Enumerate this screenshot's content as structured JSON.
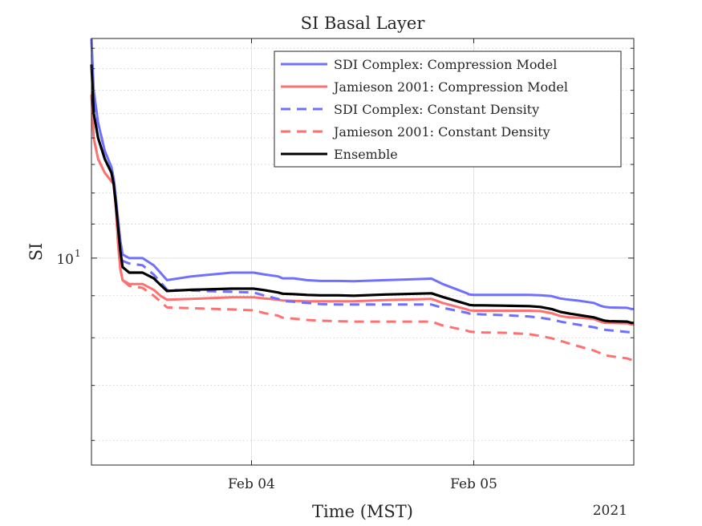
{
  "chart_data": {
    "type": "line",
    "title": "SI Basal Layer",
    "xlabel": "Time (MST)",
    "ylabel": "SI",
    "year_label": "2021",
    "y_scale": "log",
    "ylim": [
      5.6,
      18.5
    ],
    "xlim": [
      0,
      2.44
    ],
    "x_units": "days since Feb 03 00:00 (axis shows dates)",
    "x_ticks": [
      {
        "x": 0.72,
        "label": "Feb 04"
      },
      {
        "x": 1.72,
        "label": "Feb 05"
      }
    ],
    "y_ticks": [
      {
        "y": 10,
        "label": "10",
        "sup": "1"
      }
    ],
    "grid": true,
    "legend_position": "top-right",
    "series": [
      {
        "name": "SDI Complex: Compression Model",
        "color": "#7070ff",
        "style": "solid",
        "x": [
          0,
          0.01,
          0.03,
          0.06,
          0.09,
          0.1,
          0.11,
          0.13,
          0.14,
          0.17,
          0.23,
          0.28,
          0.31,
          0.34,
          0.45,
          0.63,
          0.73,
          0.78,
          0.84,
          0.86,
          0.91,
          0.97,
          1.03,
          1.11,
          1.18,
          1.32,
          1.53,
          1.58,
          1.69,
          1.7,
          1.72,
          1.76,
          1.87,
          1.97,
          2.02,
          2.07,
          2.11,
          2.15,
          2.2,
          2.26,
          2.29,
          2.31,
          2.33,
          2.41,
          2.43,
          2.44
        ],
        "y": [
          18.5,
          16.0,
          14.6,
          13.5,
          12.9,
          12.5,
          11.8,
          10.5,
          10.1,
          10.0,
          10.0,
          9.8,
          9.6,
          9.4,
          9.5,
          9.6,
          9.6,
          9.55,
          9.5,
          9.45,
          9.45,
          9.4,
          9.38,
          9.38,
          9.37,
          9.4,
          9.44,
          9.3,
          9.06,
          9.03,
          9.02,
          9.02,
          9.02,
          9.02,
          9.01,
          8.99,
          8.93,
          8.9,
          8.87,
          8.82,
          8.75,
          8.72,
          8.71,
          8.7,
          8.67,
          8.67
        ]
      },
      {
        "name": "Jamieson 2001: Compression Model",
        "color": "#ff7070",
        "style": "solid",
        "x": [
          0,
          0.01,
          0.03,
          0.06,
          0.1,
          0.11,
          0.12,
          0.13,
          0.14,
          0.17,
          0.23,
          0.28,
          0.31,
          0.34,
          0.45,
          0.63,
          0.73,
          0.78,
          0.84,
          0.86,
          0.91,
          0.97,
          1.03,
          1.11,
          1.18,
          1.32,
          1.53,
          1.58,
          1.69,
          1.7,
          1.72,
          1.76,
          1.87,
          1.97,
          2.02,
          2.07,
          2.11,
          2.15,
          2.2,
          2.26,
          2.29,
          2.31,
          2.33,
          2.41,
          2.43,
          2.44
        ],
        "y": [
          15.8,
          14.0,
          13.2,
          12.7,
          12.3,
          11.5,
          10.4,
          9.7,
          9.4,
          9.3,
          9.3,
          9.15,
          9.0,
          8.9,
          8.92,
          8.96,
          8.96,
          8.93,
          8.9,
          8.88,
          8.87,
          8.86,
          8.86,
          8.86,
          8.86,
          8.89,
          8.92,
          8.82,
          8.66,
          8.64,
          8.63,
          8.63,
          8.63,
          8.63,
          8.62,
          8.57,
          8.5,
          8.47,
          8.46,
          8.43,
          8.37,
          8.34,
          8.34,
          8.33,
          8.3,
          8.3
        ]
      },
      {
        "name": "SDI Complex: Constant Density",
        "color": "#7070ff",
        "style": "dashed",
        "x": [
          0,
          0.01,
          0.03,
          0.06,
          0.09,
          0.1,
          0.11,
          0.13,
          0.14,
          0.17,
          0.23,
          0.28,
          0.31,
          0.34,
          0.45,
          0.63,
          0.73,
          0.78,
          0.84,
          0.86,
          0.91,
          0.97,
          1.03,
          1.11,
          1.18,
          1.32,
          1.53,
          1.58,
          1.69,
          1.7,
          1.72,
          1.76,
          1.87,
          1.97,
          2.02,
          2.07,
          2.11,
          2.15,
          2.2,
          2.26,
          2.29,
          2.31,
          2.33,
          2.41,
          2.43,
          2.44
        ],
        "y": [
          18.5,
          15.5,
          14.6,
          13.5,
          12.9,
          12.5,
          11.8,
          10.3,
          9.92,
          9.85,
          9.8,
          9.55,
          9.35,
          9.15,
          9.13,
          9.1,
          9.08,
          9.0,
          8.92,
          8.87,
          8.85,
          8.82,
          8.79,
          8.78,
          8.78,
          8.78,
          8.78,
          8.7,
          8.58,
          8.56,
          8.55,
          8.54,
          8.52,
          8.49,
          8.46,
          8.42,
          8.37,
          8.33,
          8.29,
          8.24,
          8.2,
          8.18,
          8.17,
          8.13,
          8.12,
          8.12
        ]
      },
      {
        "name": "Jamieson 2001: Constant Density",
        "color": "#ff7070",
        "style": "dashed",
        "x": [
          0,
          0.01,
          0.03,
          0.06,
          0.1,
          0.11,
          0.12,
          0.13,
          0.14,
          0.17,
          0.23,
          0.28,
          0.31,
          0.34,
          0.45,
          0.63,
          0.73,
          0.78,
          0.84,
          0.86,
          0.91,
          0.97,
          1.03,
          1.11,
          1.18,
          1.32,
          1.53,
          1.58,
          1.69,
          1.7,
          1.72,
          1.76,
          1.87,
          1.97,
          2.02,
          2.07,
          2.11,
          2.15,
          2.2,
          2.26,
          2.29,
          2.31,
          2.33,
          2.41,
          2.43,
          2.44
        ],
        "y": [
          15.8,
          14.0,
          13.2,
          12.7,
          12.3,
          11.5,
          10.4,
          9.7,
          9.4,
          9.25,
          9.2,
          9.0,
          8.86,
          8.71,
          8.69,
          8.66,
          8.64,
          8.57,
          8.51,
          8.46,
          8.44,
          8.41,
          8.39,
          8.38,
          8.37,
          8.37,
          8.37,
          8.28,
          8.16,
          8.14,
          8.13,
          8.12,
          8.11,
          8.08,
          8.04,
          7.99,
          7.93,
          7.87,
          7.8,
          7.72,
          7.66,
          7.62,
          7.6,
          7.55,
          7.52,
          7.5
        ]
      },
      {
        "name": "Ensemble",
        "color": "#000000",
        "style": "solid",
        "x": [
          0,
          0.01,
          0.03,
          0.06,
          0.09,
          0.1,
          0.11,
          0.13,
          0.14,
          0.17,
          0.23,
          0.28,
          0.31,
          0.34,
          0.45,
          0.63,
          0.73,
          0.78,
          0.84,
          0.86,
          0.91,
          0.97,
          1.03,
          1.11,
          1.18,
          1.32,
          1.53,
          1.58,
          1.69,
          1.7,
          1.72,
          1.76,
          1.87,
          1.97,
          2.02,
          2.07,
          2.11,
          2.15,
          2.2,
          2.26,
          2.29,
          2.31,
          2.33,
          2.41,
          2.43,
          2.44
        ],
        "y": [
          17.2,
          15.0,
          14.0,
          13.2,
          12.7,
          12.3,
          11.6,
          10.2,
          9.75,
          9.6,
          9.6,
          9.45,
          9.28,
          9.12,
          9.15,
          9.18,
          9.18,
          9.14,
          9.08,
          9.05,
          9.04,
          9.02,
          9.01,
          9.01,
          9.0,
          9.03,
          9.06,
          8.97,
          8.79,
          8.77,
          8.76,
          8.76,
          8.75,
          8.74,
          8.72,
          8.67,
          8.6,
          8.56,
          8.52,
          8.47,
          8.42,
          8.39,
          8.38,
          8.37,
          8.34,
          8.34
        ]
      }
    ]
  }
}
